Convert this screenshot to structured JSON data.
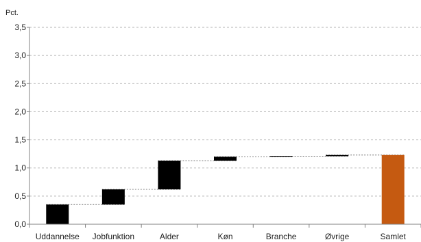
{
  "chart_data": {
    "type": "bar",
    "subtype": "waterfall",
    "ylabel": "Pct.",
    "ylim": [
      0,
      3.5
    ],
    "yticks": [
      "0,0",
      "0,5",
      "1,0",
      "1,5",
      "2,0",
      "2,5",
      "3,0",
      "3,5"
    ],
    "ytick_values": [
      0,
      0.5,
      1.0,
      1.5,
      2.0,
      2.5,
      3.0,
      3.5
    ],
    "grid": true,
    "categories": [
      "Uddannelse",
      "Jobfunktion",
      "Alder",
      "Køn",
      "Branche",
      "Øvrige",
      "Samlet"
    ],
    "contributions": [
      0.35,
      0.27,
      0.51,
      0.07,
      0.01,
      0.02,
      1.23
    ],
    "bar_types": [
      "step",
      "step",
      "step",
      "step",
      "step",
      "step",
      "total"
    ],
    "colors": {
      "step": "#000000",
      "total": "#C55A11",
      "grid": "#B3B3B3",
      "axis": "#808080",
      "connector": "#595959"
    }
  }
}
